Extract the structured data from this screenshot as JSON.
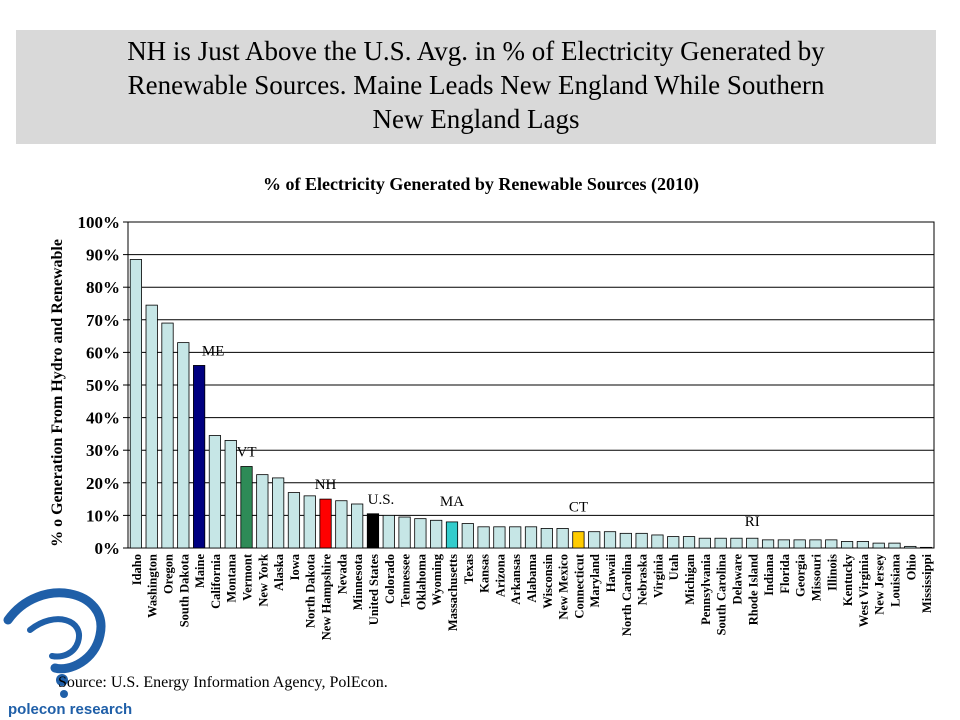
{
  "header": {
    "title": "NH is Just Above the U.S. Avg. in % of Electricity Generated by\nRenewable Sources. Maine Leads New England While Southern\nNew England Lags"
  },
  "source": "Source: U.S. Energy Information Agency, PolEcon.",
  "logo": {
    "text": "polecon research"
  },
  "colors": {
    "default_bar": "#c6e6e6",
    "ME": "#000080",
    "VT": "#2e8b57",
    "NH": "#ff0000",
    "US": "#000000",
    "MA": "#33cccc",
    "CT": "#ffcc00",
    "RI": "#c6e6e6",
    "logo_blue": "#1f5fa8"
  },
  "chart_data": {
    "type": "bar",
    "title": "% of Electricity Generated by Renewable Sources (2010)",
    "xlabel": "",
    "ylabel": "% o Generation From Hydro and Renewable",
    "ylim": [
      0,
      100
    ],
    "yticks": [
      "0%",
      "10%",
      "20%",
      "30%",
      "40%",
      "50%",
      "60%",
      "70%",
      "80%",
      "90%",
      "100%"
    ],
    "grid": true,
    "categories": [
      "Idaho",
      "Washington",
      "Oregon",
      "South Dakota",
      "Maine",
      "California",
      "Montana",
      "Vermont",
      "New York",
      "Alaska",
      "Iowa",
      "North Dakota",
      "New Hampshire",
      "Nevada",
      "Minnesota",
      "United States",
      "Colorado",
      "Tennessee",
      "Oklahoma",
      "Wyoming",
      "Massachusetts",
      "Texas",
      "Kansas",
      "Arizona",
      "Arkansas",
      "Alabama",
      "Wisconsin",
      "New Mexico",
      "Connecticut",
      "Maryland",
      "Hawaii",
      "North Carolina",
      "Nebraska",
      "Virginia",
      "Utah",
      "Michigan",
      "Pennsylvania",
      "South Carolina",
      "Delaware",
      "Rhode Island",
      "Indiana",
      "Florida",
      "Georgia",
      "Missouri",
      "Illinois",
      "Kentucky",
      "West Virginia",
      "New Jersey",
      "Louisiana",
      "Ohio",
      "Mississippi"
    ],
    "values": [
      88.5,
      74.5,
      69.0,
      63.0,
      56.0,
      34.5,
      33.0,
      25.0,
      22.5,
      21.5,
      17.0,
      16.0,
      15.0,
      14.5,
      13.5,
      10.5,
      10.0,
      9.5,
      9.0,
      8.5,
      8.0,
      7.5,
      6.5,
      6.5,
      6.5,
      6.5,
      6.0,
      6.0,
      5.0,
      5.0,
      5.0,
      4.5,
      4.5,
      4.0,
      3.5,
      3.5,
      3.0,
      3.0,
      3.0,
      3.0,
      2.5,
      2.5,
      2.5,
      2.5,
      2.5,
      2.0,
      2.0,
      1.5,
      1.5,
      0.5,
      0.2
    ],
    "highlights": [
      {
        "category": "Maine",
        "label": "ME",
        "color_key": "ME"
      },
      {
        "category": "Vermont",
        "label": "VT",
        "color_key": "VT"
      },
      {
        "category": "New Hampshire",
        "label": "NH",
        "color_key": "NH"
      },
      {
        "category": "United States",
        "label": "U.S.",
        "color_key": "US"
      },
      {
        "category": "Massachusetts",
        "label": "MA",
        "color_key": "MA"
      },
      {
        "category": "Connecticut",
        "label": "CT",
        "color_key": "CT"
      },
      {
        "category": "Rhode Island",
        "label": "RI",
        "color_key": "RI"
      }
    ]
  }
}
